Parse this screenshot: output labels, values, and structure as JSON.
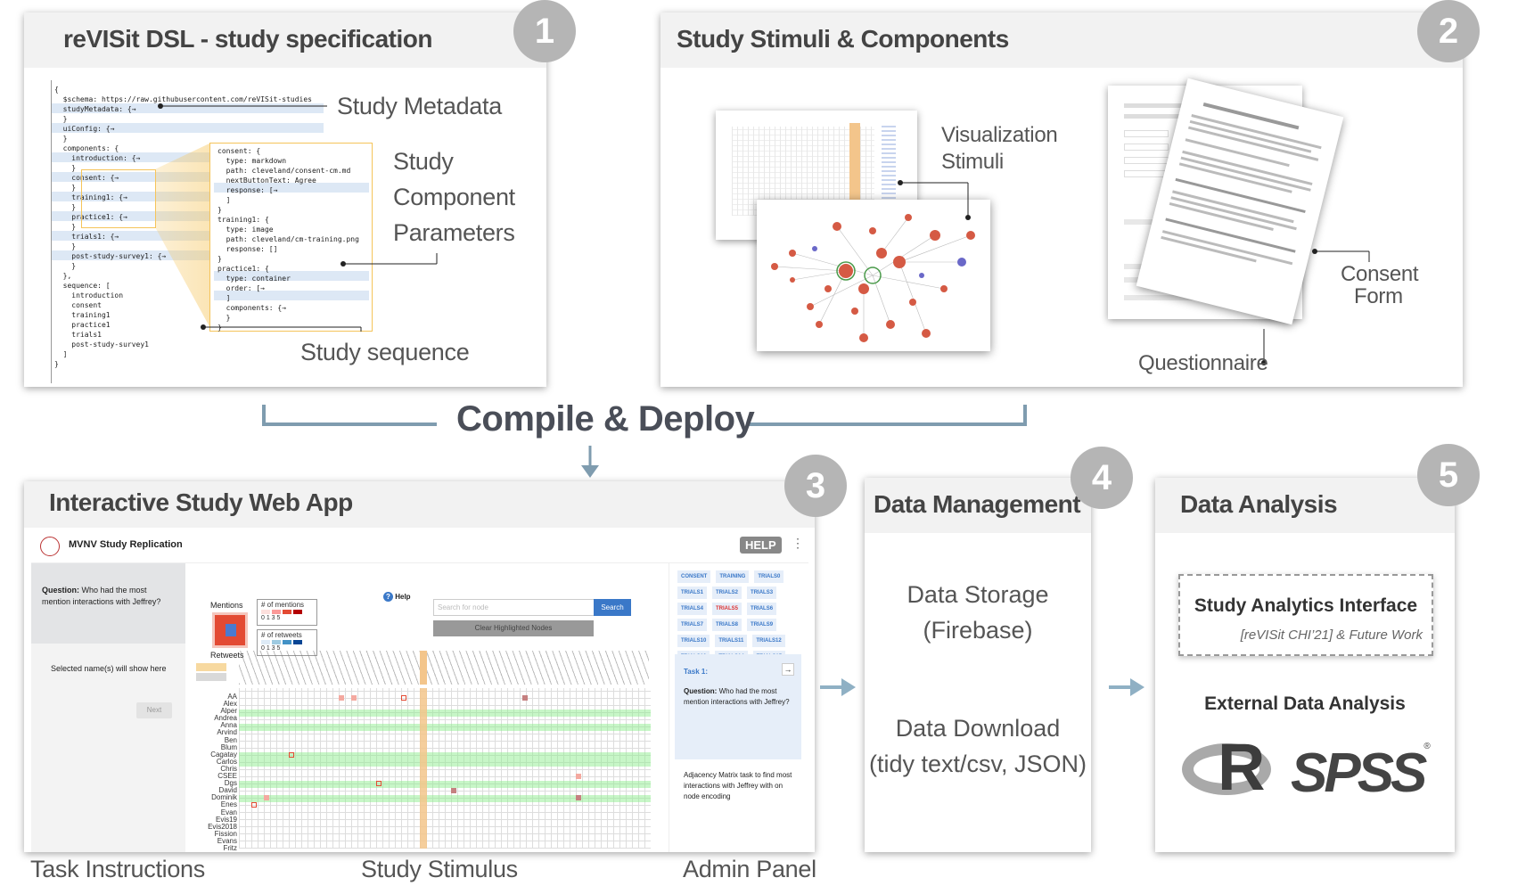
{
  "panels": {
    "dsl": {
      "number": "1",
      "title": "reVISit DSL - study specification"
    },
    "stimuli": {
      "number": "2",
      "title": "Study Stimuli & Components"
    },
    "webapp": {
      "number": "3",
      "title": "Interactive Study Web App"
    },
    "data_mgmt": {
      "number": "4",
      "title": "Data Management"
    },
    "analysis": {
      "number": "5",
      "title": "Data Analysis"
    }
  },
  "dsl_labels": {
    "metadata": "Study Metadata",
    "component_params": [
      "Study",
      "Component",
      "Parameters"
    ],
    "sequence": "Study sequence"
  },
  "dsl_code": [
    "{",
    "  $schema: https://raw.githubusercontent.com/reVISit-studies",
    "  studyMetadata: {→",
    "  }",
    "  uiConfig: {→",
    "  }",
    "  components: {",
    "    introduction: {→",
    "    }",
    "    consent: {→",
    "    }",
    "    training1: {→",
    "    }",
    "    practice1: {→",
    "    }",
    "    trials1: {→",
    "    }",
    "    post-study-survey1: {→",
    "    }",
    "  },",
    "  sequence: [",
    "    introduction",
    "    consent",
    "    training1",
    "    practice1",
    "    trials1",
    "    post-study-survey1",
    "  ]",
    "}"
  ],
  "dsl_popup_code": [
    "consent: {",
    "  type: markdown",
    "  path: cleveland/consent-cm.md",
    "  nextButtonText: Agree",
    "  response: [→",
    "  ]",
    "}",
    "training1: {",
    "  type: image",
    "  path: cleveland/cm-training.png",
    "  response: []",
    "}",
    "practice1: {",
    "  type: container",
    "  order: [→",
    "  ]",
    "  components: {→",
    "  }",
    "}"
  ],
  "stimuli_labels": {
    "visualization": [
      "Visualization",
      "Stimuli"
    ],
    "consent": [
      "Consent",
      "Form"
    ],
    "questionnaire": "Questionnaire"
  },
  "compile": "Compile & Deploy",
  "webapp": {
    "app_title": "MVNV Study Replication",
    "help_badge": "HELP",
    "question_prefix": "Question:",
    "question_text": " Who had the most mention interactions with Jeffrey?",
    "selected_text": "Selected name(s) will show here",
    "next_button": "Next",
    "legend_mentions": "Mentions",
    "legend_retweets": "Retweets",
    "legend_num_mentions": "# of mentions",
    "legend_num_retweets": "# of retweets",
    "legend_scale": "0  1  3  5",
    "help_link": "Help",
    "search_placeholder": "Search for node",
    "search_button": "Search",
    "clear_button": "Clear Highlighted Nodes",
    "chips": [
      "CONSENT",
      "TRAINING",
      "TRIALS0",
      "TRIALS1",
      "TRIALS2",
      "TRIALS3",
      "TRIALS4",
      "TRIALS5",
      "TRIALS6",
      "TRIALS7",
      "TRIALS8",
      "TRIALS9",
      "TRIALS10",
      "TRIALS11",
      "TRIALS12",
      "TRIALS13",
      "TRIALS14",
      "TRIALS15"
    ],
    "task_title": "Task 1:",
    "task_question_prefix": "Question:",
    "task_question": " Who had the most mention interactions with Jeffrey?",
    "task_desc": "Adjacency Matrix task to find most interactions with Jeffrey with on node encoding",
    "row_names": [
      "AA",
      "Alex",
      "Alper",
      "Andrea",
      "Anna",
      "Arvind",
      "Ben",
      "Blum",
      "Cagatay",
      "Carlos",
      "Chris",
      "CSEE",
      "Dgs",
      "David",
      "Dominik",
      "Enes",
      "Evan",
      "Evis19",
      "Evis2018",
      "Fission",
      "Evans",
      "Fritz"
    ],
    "bottom_labels": {
      "task": "Task Instructions",
      "stimulus": "Study Stimulus",
      "admin": "Admin Panel"
    }
  },
  "data_mgmt": {
    "storage": [
      "Data Storage",
      "(Firebase)"
    ],
    "download": [
      "Data Download",
      "(tidy text/csv, JSON)"
    ]
  },
  "analysis": {
    "interface_title": "Study Analytics Interface",
    "interface_sub": "[reVISit CHI’21] & Future Work",
    "external": "External Data Analysis",
    "r_logo": "R",
    "spss_logo": "SPSS",
    "registered": "®"
  },
  "colors": {
    "badge": "#b5b5b5",
    "connector": "#7f9caf",
    "popup_border": "#f5c45a",
    "accent_blue": "#3a78c8"
  }
}
